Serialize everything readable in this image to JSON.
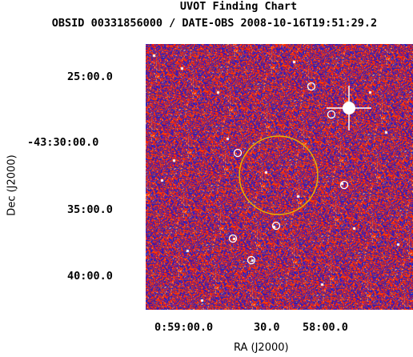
{
  "title": "UVOT Finding Chart",
  "subtitle": "OBSID 00331856000 / DATE-OBS 2008-10-16T19:51:29.2",
  "xlabel": "RA (J2000)",
  "ylabel": "Dec (J2000)",
  "x_ticks": [
    "0:59:00.0",
    "30.0",
    "58:00.0"
  ],
  "y_ticks": [
    "25:00.0",
    "-43:30:00.0",
    "35:00.0",
    "40:00.0"
  ],
  "colors": {
    "background_red": "#ff2a00",
    "background_blue": "#2020c8",
    "circle_yellow": "#e8b000",
    "source_white": "#ffffff"
  }
}
